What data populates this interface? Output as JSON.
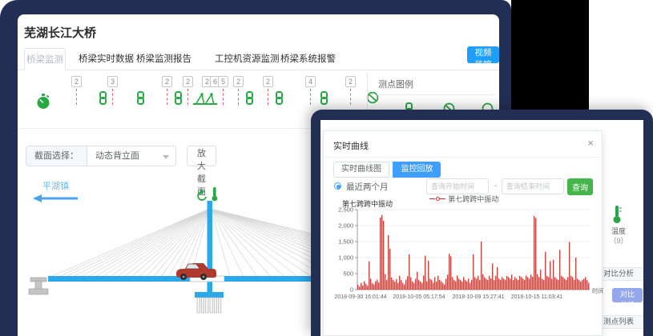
{
  "page_title": "芜湖长江大桥",
  "main_tabs": [
    "桥梁监测",
    "桥梁实时数据",
    "桥梁监测报告",
    "工控机资源监测",
    "桥梁系统报警"
  ],
  "video_button": "视频监控",
  "sensor_row": {
    "badges": [
      2,
      3,
      2,
      2,
      2,
      6,
      5,
      2,
      2,
      4,
      2
    ]
  },
  "legend_panel": {
    "title": "测点图例"
  },
  "section_bar": {
    "label": "截面选择：",
    "selected": "动态背立面",
    "zoom_button": "放大截面"
  },
  "bridge": {
    "left_label": "平湖镇"
  },
  "sidebar": {
    "temp_label": "温度",
    "temp_count": "（9）",
    "analysis_header": "对比分析",
    "analysis_button": "对比分析",
    "list_header": "测点列表"
  },
  "modal": {
    "title": "实时曲线",
    "close": "×",
    "tabs": [
      "实时曲线图",
      "监控回放"
    ],
    "radio_label": "最近两个月",
    "start_placeholder": "查询开始时间",
    "separator": "-",
    "end_placeholder": "查询结束时间",
    "query_button": "查询"
  },
  "chart_data": {
    "type": "bar",
    "title": "第七跨跨中振动",
    "legend": [
      "第七跨跨中振动"
    ],
    "xlabel": "时间",
    "ylabel": "",
    "ylim": [
      0,
      2500
    ],
    "yticks": [
      0,
      500,
      1000,
      1500,
      2000,
      2500
    ],
    "grid": true,
    "legend_position": "top",
    "x_tick_labels": [
      "2018-09-30 16:01:44",
      "2018-10-05 05:17:54",
      "2018-10-09 15:27:41",
      "2018-10-15 11:03:41"
    ],
    "series": [
      {
        "name": "第七跨跨中振动",
        "color": "#c23531",
        "values": [
          150,
          90,
          210,
          130,
          260,
          180,
          120,
          880,
          340,
          200,
          160,
          260,
          310,
          220,
          2250,
          2330,
          2150,
          480,
          300,
          1700,
          1280,
          380,
          300,
          240,
          330,
          210,
          430,
          300,
          210,
          160,
          310,
          420,
          1100,
          390,
          260,
          210,
          340,
          560,
          300,
          250,
          210,
          440,
          1060,
          260,
          900,
          340,
          300,
          210,
          390,
          250,
          430,
          300,
          260,
          210,
          160,
          340,
          470,
          1120,
          1040,
          390,
          300,
          260,
          440,
          340,
          300,
          250,
          390,
          300,
          260,
          340,
          210,
          300,
          1100,
          390,
          340,
          430,
          300,
          1500,
          480,
          390,
          340,
          300,
          430,
          350,
          820,
          300,
          430,
          700,
          340,
          300,
          390,
          340,
          300,
          430,
          390,
          340,
          470,
          300,
          390,
          340,
          300,
          430,
          390,
          340,
          300,
          440,
          390,
          340,
          470,
          400,
          2300,
          2240,
          480,
          390,
          620,
          340,
          300,
          1180,
          430,
          390,
          890,
          340,
          930,
          390,
          340,
          300,
          1240,
          430,
          390,
          340,
          300,
          390,
          1490,
          430,
          390,
          300,
          1000,
          340,
          300,
          250,
          300,
          340,
          390,
          300,
          210
        ]
      }
    ]
  },
  "colors": {
    "navy": "#232e55",
    "accent_blue": "#1e9fff",
    "tab_active_blue": "#409eff",
    "green": "#27a845",
    "query_green": "#44b549",
    "chart_red": "#c23531",
    "deck_blue": "#2ba9e8",
    "light_blue_label": "#6fb9f2"
  }
}
